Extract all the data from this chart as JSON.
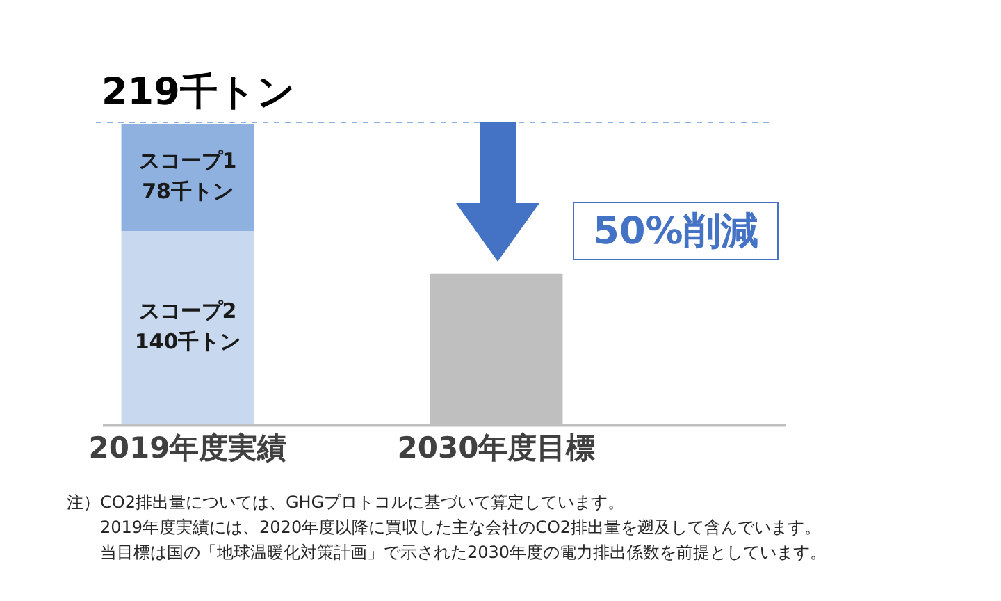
{
  "chart_data": {
    "type": "bar",
    "stacked": true,
    "categories": [
      "2019年度実績",
      "2030年度目標"
    ],
    "series": [
      {
        "name": "スコープ2",
        "color": "#c8d8ef",
        "values": [
          140,
          null
        ],
        "value_labels": [
          "140千トン",
          null
        ]
      },
      {
        "name": "スコープ1",
        "color": "#8eb1e0",
        "values": [
          78,
          null
        ],
        "value_labels": [
          "78千トン",
          null
        ]
      },
      {
        "color": "#bfbfbf",
        "values": [
          null,
          109
        ]
      }
    ],
    "totals": [
      "219千トン",
      null
    ],
    "ref_lines": [
      {
        "axis": "y",
        "value": 219,
        "color": "#8eb1e0",
        "line_style": "dashed"
      }
    ],
    "tick_labels": "x",
    "grid": false,
    "legend": false,
    "annotations": [
      "50%削減",
      "注）CO2排出量については、GHGプロトコルに基づいて算定しています。",
      "2019年度実績には、2020年度以降に買収した主な会社のCO2排出量を遡及して含んでいます。",
      "当目標は国の「地球温暖化対策計画」で示された2030年度の電力排出係数を前提としています。"
    ]
  }
}
